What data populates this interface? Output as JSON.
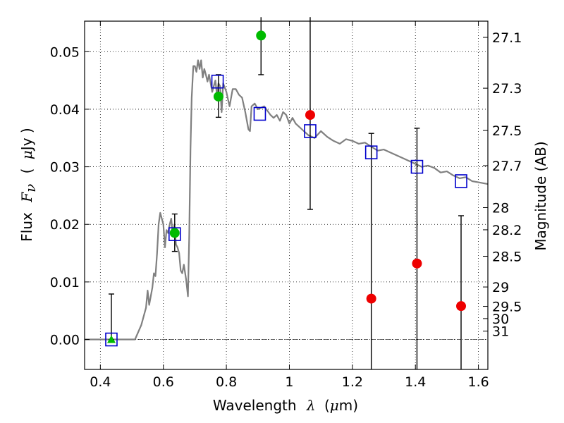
{
  "chart_data": {
    "type": "scatter",
    "xlabel": {
      "prefix": "Wavelength",
      "symbol": "λ",
      "unit_open": "(",
      "unit_mu": "μ",
      "unit_rest": "m)"
    },
    "ylabel": {
      "prefix": "Flux",
      "symbol": "F",
      "subscript": "ν",
      "unit_open": "(",
      "unit_mu": "μ",
      "unit_rest": "Jy )"
    },
    "y2label": "Magnitude (AB)",
    "xlim": [
      0.35,
      1.63
    ],
    "ylim": [
      -0.0052,
      0.0553
    ],
    "x_ticks": [
      0.4,
      0.6,
      0.8,
      1.0,
      1.2,
      1.4,
      1.6
    ],
    "x_tick_labels": [
      "0.4",
      "0.6",
      "0.8",
      "1",
      "1.2",
      "1.4",
      "1.6"
    ],
    "y_ticks": [
      0.0,
      0.01,
      0.02,
      0.03,
      0.04,
      0.05
    ],
    "y_tick_labels": [
      "0.00",
      "0.01",
      "0.02",
      "0.03",
      "0.04",
      "0.05"
    ],
    "mag_ticks": [
      27.1,
      27.3,
      27.5,
      27.7,
      28,
      28.2,
      28.5,
      29,
      29.5,
      30,
      31
    ],
    "mag_tick_labels": [
      "27.1",
      "27.3",
      "27.5",
      "27.7",
      "28",
      "28.2",
      "28.5",
      "29",
      "29.5",
      "30",
      "31"
    ],
    "grid": true,
    "colors": {
      "model": "#808080",
      "model_points": "#0000cc",
      "detections": "#00bb00",
      "upper_limits": "#ee0000",
      "error_bars": "#000000",
      "zero_line": "#555555"
    },
    "series": [
      {
        "kind": "model_spectrum",
        "x": [
          0.35,
          0.45,
          0.5,
          0.51,
          0.53,
          0.545,
          0.55,
          0.555,
          0.565,
          0.57,
          0.575,
          0.58,
          0.585,
          0.59,
          0.6,
          0.605,
          0.61,
          0.615,
          0.62,
          0.625,
          0.63,
          0.635,
          0.64,
          0.645,
          0.65,
          0.655,
          0.66,
          0.665,
          0.672,
          0.678,
          0.682,
          0.686,
          0.69,
          0.695,
          0.7,
          0.705,
          0.71,
          0.715,
          0.72,
          0.725,
          0.73,
          0.735,
          0.74,
          0.745,
          0.75,
          0.755,
          0.76,
          0.765,
          0.77,
          0.775,
          0.78,
          0.785,
          0.79,
          0.8,
          0.81,
          0.82,
          0.83,
          0.84,
          0.85,
          0.86,
          0.87,
          0.875,
          0.88,
          0.89,
          0.9,
          0.92,
          0.94,
          0.95,
          0.96,
          0.97,
          0.98,
          0.99,
          1.0,
          1.01,
          1.02,
          1.03,
          1.04,
          1.05,
          1.06,
          1.08,
          1.1,
          1.12,
          1.14,
          1.16,
          1.18,
          1.2,
          1.22,
          1.24,
          1.26,
          1.28,
          1.3,
          1.32,
          1.34,
          1.36,
          1.38,
          1.4,
          1.42,
          1.44,
          1.46,
          1.48,
          1.5,
          1.52,
          1.54,
          1.56,
          1.58,
          1.6,
          1.63
        ],
        "y": [
          0.0,
          0.0,
          0.0,
          0.0,
          0.0025,
          0.0055,
          0.0085,
          0.006,
          0.009,
          0.0115,
          0.011,
          0.015,
          0.02,
          0.022,
          0.02,
          0.016,
          0.019,
          0.0185,
          0.02,
          0.021,
          0.018,
          0.02,
          0.0165,
          0.016,
          0.015,
          0.012,
          0.0115,
          0.013,
          0.0105,
          0.0075,
          0.018,
          0.033,
          0.042,
          0.0475,
          0.0475,
          0.0465,
          0.0485,
          0.047,
          0.0485,
          0.0455,
          0.047,
          0.046,
          0.0448,
          0.046,
          0.0445,
          0.043,
          0.044,
          0.045,
          0.0425,
          0.0445,
          0.044,
          0.0395,
          0.0445,
          0.043,
          0.0405,
          0.0435,
          0.0435,
          0.0425,
          0.042,
          0.0395,
          0.0365,
          0.0362,
          0.0405,
          0.041,
          0.04,
          0.0405,
          0.039,
          0.0385,
          0.039,
          0.038,
          0.0395,
          0.039,
          0.0375,
          0.0385,
          0.0375,
          0.037,
          0.0365,
          0.036,
          0.0355,
          0.035,
          0.0362,
          0.0352,
          0.0345,
          0.034,
          0.0348,
          0.0345,
          0.034,
          0.0342,
          0.0335,
          0.0328,
          0.033,
          0.0325,
          0.032,
          0.0315,
          0.031,
          0.0305,
          0.03,
          0.0302,
          0.0298,
          0.029,
          0.0292,
          0.0285,
          0.028,
          0.0282,
          0.0275,
          0.0273,
          0.027
        ]
      },
      {
        "kind": "model_points",
        "x": [
          0.435,
          0.636,
          0.772,
          0.906,
          1.066,
          1.26,
          1.405,
          1.545
        ],
        "y": [
          0.0,
          0.0183,
          0.0448,
          0.0392,
          0.0362,
          0.0325,
          0.03,
          0.0275
        ]
      },
      {
        "kind": "detections",
        "x": [
          0.636,
          0.775,
          0.91
        ],
        "y": [
          0.0185,
          0.0422,
          0.0528
        ],
        "yerr_low": [
          0.0153,
          0.0386,
          0.046
        ],
        "yerr_high": [
          0.0218,
          0.046,
          0.056
        ]
      },
      {
        "kind": "triangle",
        "x": [
          0.435
        ],
        "y": [
          0.0
        ],
        "yerr_low": [
          0.0
        ],
        "yerr_high": [
          0.0079
        ]
      },
      {
        "kind": "upper_limits",
        "x": [
          1.066,
          1.26,
          1.405,
          1.545
        ],
        "y": [
          0.039,
          0.0071,
          0.0132,
          0.0058
        ],
        "yerr_low": [
          0.0226,
          -0.0052,
          -0.0052,
          -0.0052
        ],
        "yerr_high": [
          0.056,
          0.0358,
          0.0367,
          0.0215
        ]
      }
    ]
  }
}
